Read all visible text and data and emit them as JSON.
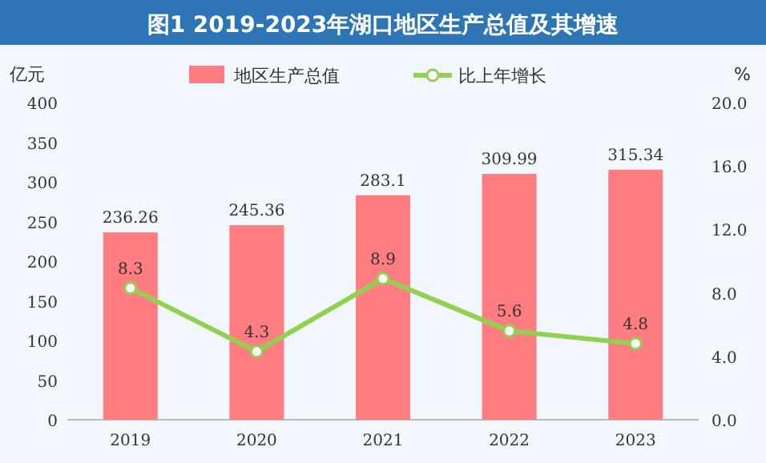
{
  "chart_data": {
    "type": "bar",
    "title": "图1 2019-2023年湖口地区生产总值及其增速",
    "ylabel": "亿元",
    "y2label": "%",
    "categories": [
      "2019",
      "2020",
      "2021",
      "2022",
      "2023"
    ],
    "series": [
      {
        "name": "地区生产总值",
        "color": "#ff7c80",
        "values": [
          236.26,
          245.36,
          283.1,
          309.99,
          315.34
        ]
      },
      {
        "name": "比上年增长",
        "type": "line",
        "axis": "y2",
        "color": "#92d050",
        "marker": "circle",
        "values": [
          8.3,
          4.3,
          8.9,
          5.6,
          4.8
        ]
      }
    ],
    "ylim": [
      0,
      400
    ],
    "yticks": [
      0,
      50,
      100,
      150,
      200,
      250,
      300,
      350,
      400
    ],
    "y2lim": [
      0,
      20
    ],
    "y2ticks": [
      {
        "value": 0,
        "label": "0.0"
      },
      {
        "value": 4,
        "label": "4.0"
      },
      {
        "value": 8,
        "label": "8.0"
      },
      {
        "value": 12,
        "label": "12.0"
      },
      {
        "value": 16,
        "label": "16.0"
      },
      {
        "value": 20,
        "label": "20.0"
      }
    ],
    "data_labels": true,
    "legend": "top",
    "grid": false
  }
}
